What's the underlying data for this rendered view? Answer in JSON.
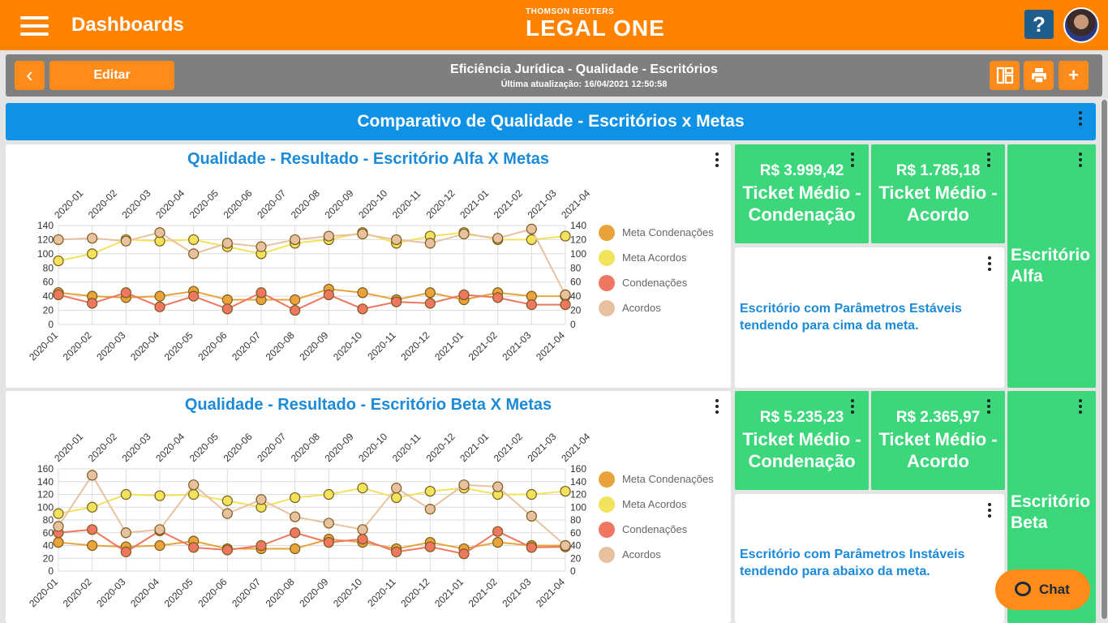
{
  "header": {
    "title": "Dashboards",
    "brand_top": "THOMSON REUTERS",
    "brand_main": "LEGAL ONE",
    "help_label": "?"
  },
  "toolbar": {
    "edit_label": "Editar",
    "title": "Eficiência Jurídica - Qualidade - Escritórios",
    "subtitle": "Última atualização: 16/04/2021 12:50:58"
  },
  "section": {
    "title": "Comparativo de Qualidade - Escritórios x Metas"
  },
  "chat": {
    "label": "Chat"
  },
  "colors": {
    "meta_cond": "#e9a33b",
    "meta_acordos": "#f2e35c",
    "condenacoes": "#ee7762",
    "acordos": "#e8c1a0",
    "tile_green": "#3dd77b",
    "accent": "#ff8200",
    "title_blue": "#1b8ad8"
  },
  "panels": [
    {
      "title": "Qualidade - Resultado - Escritório Alfa X Metas",
      "tiles": [
        {
          "value": "R$ 3.999,42",
          "label": "Ticket Médio - Condenação"
        },
        {
          "value": "R$ 1.785,18",
          "label": "Ticket Médio - Acordo"
        }
      ],
      "message": "Escritório com Parâmetros Estáveis tendendo para cima da meta.",
      "office": "Escritório Alfa"
    },
    {
      "title": "Qualidade - Resultado - Escritório Beta X Metas",
      "tiles": [
        {
          "value": "R$ 5.235,23",
          "label": "Ticket Médio - Condenação"
        },
        {
          "value": "R$ 2.365,97",
          "label": "Ticket Médio - Acordo"
        }
      ],
      "message": "Escritório com Parâmetros Instáveis tendendo para abaixo da meta.",
      "office": "Escritório Beta"
    }
  ],
  "chart_data": [
    {
      "type": "line",
      "title": "Qualidade - Resultado - Escritório Alfa X Metas",
      "x": [
        "2020-01",
        "2020-02",
        "2020-03",
        "2020-04",
        "2020-05",
        "2020-06",
        "2020-07",
        "2020-08",
        "2020-09",
        "2020-10",
        "2020-11",
        "2020-12",
        "2021-01",
        "2021-02",
        "2021-03",
        "2021-04"
      ],
      "ylim": [
        0,
        140
      ],
      "yticks": [
        0,
        20,
        40,
        60,
        80,
        100,
        120,
        140
      ],
      "legend_position": "right",
      "grid": true,
      "series": [
        {
          "name": "Meta Condenações",
          "color": "#e9a33b",
          "values": [
            45,
            40,
            38,
            40,
            47,
            35,
            35,
            35,
            50,
            45,
            35,
            45,
            35,
            45,
            40,
            40
          ]
        },
        {
          "name": "Meta Acordos",
          "color": "#f2e35c",
          "values": [
            90,
            100,
            120,
            118,
            120,
            110,
            100,
            115,
            120,
            130,
            115,
            125,
            130,
            120,
            120,
            125
          ]
        },
        {
          "name": "Condenações",
          "color": "#ee7762",
          "values": [
            42,
            30,
            45,
            25,
            40,
            22,
            45,
            20,
            42,
            22,
            32,
            30,
            42,
            38,
            28,
            28
          ]
        },
        {
          "name": "Acordos",
          "color": "#e8c1a0",
          "values": [
            120,
            122,
            118,
            130,
            100,
            115,
            110,
            120,
            125,
            128,
            120,
            115,
            128,
            122,
            135,
            42
          ]
        }
      ]
    },
    {
      "type": "line",
      "title": "Qualidade - Resultado - Escritório Beta X Metas",
      "x": [
        "2020-01",
        "2020-02",
        "2020-03",
        "2020-04",
        "2020-05",
        "2020-06",
        "2020-07",
        "2020-08",
        "2020-09",
        "2020-10",
        "2020-11",
        "2020-12",
        "2021-01",
        "2021-02",
        "2021-03",
        "2021-04"
      ],
      "ylim": [
        0,
        160
      ],
      "yticks": [
        0,
        20,
        40,
        60,
        80,
        100,
        120,
        140,
        160
      ],
      "legend_position": "right",
      "grid": true,
      "series": [
        {
          "name": "Meta Condenações",
          "color": "#e9a33b",
          "values": [
            45,
            40,
            38,
            40,
            47,
            35,
            35,
            35,
            50,
            45,
            35,
            45,
            35,
            45,
            40,
            40
          ]
        },
        {
          "name": "Meta Acordos",
          "color": "#f2e35c",
          "values": [
            90,
            100,
            120,
            118,
            120,
            110,
            100,
            115,
            120,
            130,
            115,
            125,
            130,
            120,
            120,
            125
          ]
        },
        {
          "name": "Condenações",
          "color": "#ee7762",
          "values": [
            60,
            65,
            30,
            63,
            37,
            33,
            40,
            60,
            45,
            50,
            30,
            38,
            27,
            62,
            37,
            38
          ]
        },
        {
          "name": "Acordos",
          "color": "#e8c1a0",
          "values": [
            70,
            150,
            60,
            65,
            135,
            90,
            112,
            85,
            75,
            65,
            130,
            97,
            135,
            132,
            86,
            40
          ]
        }
      ]
    }
  ]
}
